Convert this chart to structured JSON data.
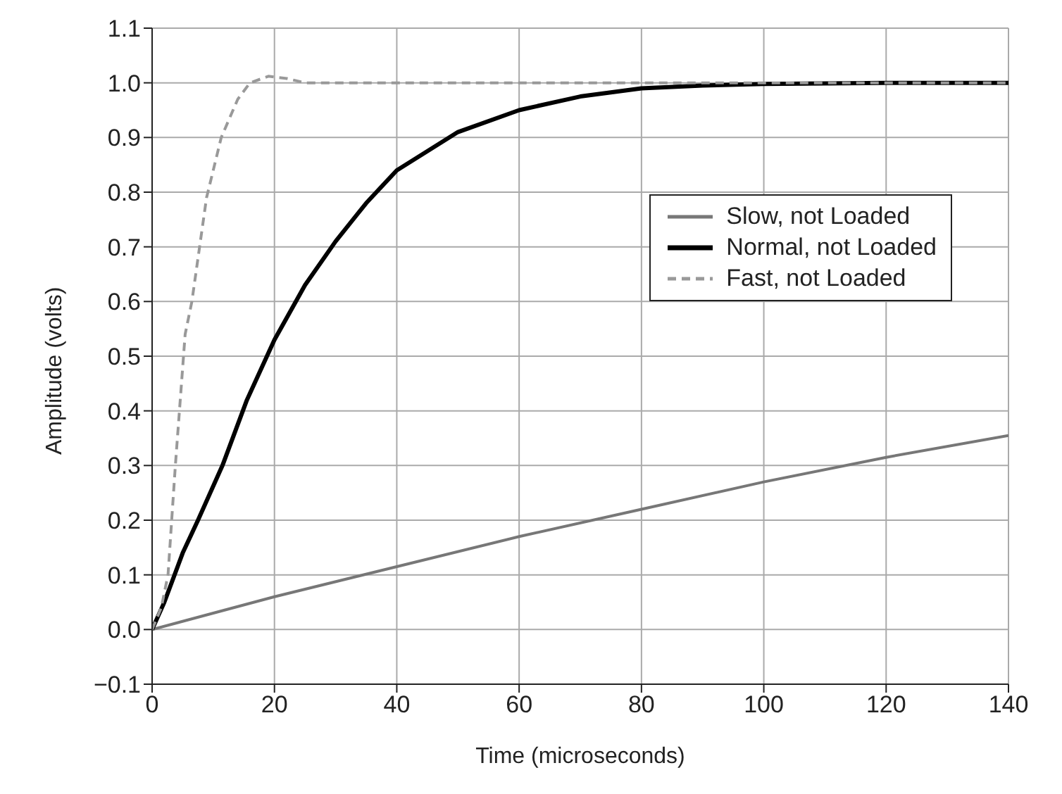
{
  "chart_data": {
    "type": "line",
    "xlabel": "Time (microseconds)",
    "ylabel": "Amplitude (volts)",
    "xlim": [
      0,
      140
    ],
    "xticks": [
      0,
      20,
      40,
      60,
      80,
      100,
      120,
      140
    ],
    "ylim": [
      -0.1,
      1.1
    ],
    "yticks": [
      {
        "value": -0.1,
        "label": "−0.1"
      },
      {
        "value": 0,
        "label": "0.0"
      },
      0.1,
      0.2,
      0.3,
      0.4,
      0.5,
      0.6,
      0.7,
      0.8,
      0.9,
      {
        "value": 1,
        "label": "1.0"
      },
      1.1
    ],
    "grid": true,
    "legend": "top right",
    "marker": "none",
    "series": [
      {
        "name": "Slow, not Loaded",
        "color": "#777777",
        "line_style": "solid",
        "x": [
          0,
          20,
          40,
          60,
          80,
          100,
          120,
          140
        ],
        "values": [
          0,
          0.06,
          0.115,
          0.17,
          0.22,
          0.27,
          0.315,
          0.355
        ]
      },
      {
        "name": "Normal, not Loaded",
        "color": "#000000",
        "line_style": "solid",
        "x": [
          0,
          2,
          5,
          7.5,
          11.5,
          15.5,
          20,
          25,
          30,
          35,
          40,
          50,
          60,
          70,
          80,
          90,
          100,
          120,
          140
        ],
        "values": [
          0,
          0.05,
          0.14,
          0.2,
          0.3,
          0.42,
          0.53,
          0.63,
          0.71,
          0.78,
          0.84,
          0.91,
          0.95,
          0.975,
          0.99,
          0.995,
          0.998,
          1.0,
          1.0
        ]
      },
      {
        "name": "Fast, not Loaded",
        "color": "#999999",
        "line_style": "dashed",
        "x": [
          0,
          1.5,
          2.6,
          3.8,
          5.4,
          6.5,
          8.9,
          11.3,
          14,
          16,
          19,
          22,
          25,
          30,
          40,
          60,
          80,
          100,
          120,
          140
        ],
        "values": [
          0,
          0.04,
          0.1,
          0.3,
          0.54,
          0.6,
          0.79,
          0.9,
          0.97,
          1.0,
          1.012,
          1.008,
          1.0,
          1.0,
          1.0,
          1.0,
          1.0,
          1.0,
          1.0,
          1.0
        ]
      }
    ]
  }
}
